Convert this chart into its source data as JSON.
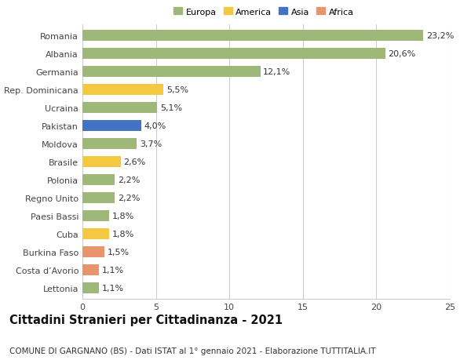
{
  "countries": [
    "Romania",
    "Albania",
    "Germania",
    "Rep. Dominicana",
    "Ucraina",
    "Pakistan",
    "Moldova",
    "Brasile",
    "Polonia",
    "Regno Unito",
    "Paesi Bassi",
    "Cuba",
    "Burkina Faso",
    "Costa d’Avorio",
    "Lettonia"
  ],
  "values": [
    23.2,
    20.6,
    12.1,
    5.5,
    5.1,
    4.0,
    3.7,
    2.6,
    2.2,
    2.2,
    1.8,
    1.8,
    1.5,
    1.1,
    1.1
  ],
  "labels": [
    "23,2%",
    "20,6%",
    "12,1%",
    "5,5%",
    "5,1%",
    "4,0%",
    "3,7%",
    "2,6%",
    "2,2%",
    "2,2%",
    "1,8%",
    "1,8%",
    "1,5%",
    "1,1%",
    "1,1%"
  ],
  "continents": [
    "Europa",
    "Europa",
    "Europa",
    "America",
    "Europa",
    "Asia",
    "Europa",
    "America",
    "Europa",
    "Europa",
    "Europa",
    "America",
    "Africa",
    "Africa",
    "Europa"
  ],
  "colors": {
    "Europa": "#9EB87A",
    "America": "#F5C842",
    "Asia": "#4472C4",
    "Africa": "#E8956D"
  },
  "legend_order": [
    "Europa",
    "America",
    "Asia",
    "Africa"
  ],
  "title": "Cittadini Stranieri per Cittadinanza - 2021",
  "subtitle": "COMUNE DI GARGNANO (BS) - Dati ISTAT al 1° gennaio 2021 - Elaborazione TUTTITALIA.IT",
  "xlim": [
    0,
    25
  ],
  "xticks": [
    0,
    5,
    10,
    15,
    20,
    25
  ],
  "background_color": "#ffffff",
  "bar_height": 0.62,
  "grid_color": "#cccccc",
  "label_fontsize": 8.0,
  "tick_fontsize": 8.0,
  "title_fontsize": 10.5,
  "subtitle_fontsize": 7.5
}
